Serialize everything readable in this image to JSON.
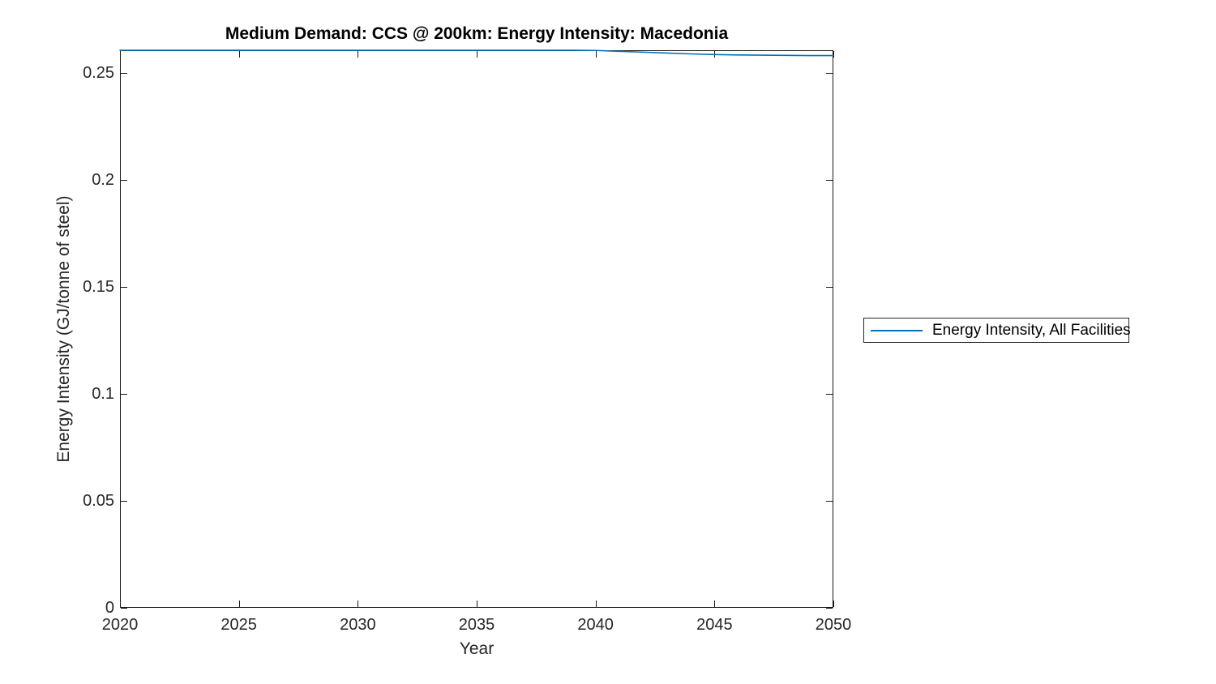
{
  "chart_data": {
    "type": "line",
    "title": "Medium Demand: CCS @ 200km: Energy Intensity: Macedonia",
    "xlabel": "Year",
    "ylabel": "Energy Intensity (GJ/tonne of steel)",
    "xlim": [
      2020,
      2050
    ],
    "ylim": [
      0,
      0.2606
    ],
    "x_ticks": [
      2020,
      2025,
      2030,
      2035,
      2040,
      2045,
      2050
    ],
    "x_tick_labels": [
      "2020",
      "2025",
      "2030",
      "2035",
      "2040",
      "2045",
      "2050"
    ],
    "y_ticks": [
      0,
      0.05,
      0.1,
      0.15,
      0.2,
      0.25
    ],
    "y_tick_labels": [
      "0",
      "0.05",
      "0.1",
      "0.15",
      "0.2",
      "0.25"
    ],
    "grid": false,
    "legend_position": "outside-right",
    "series": [
      {
        "name": "Energy Intensity, All Facilities",
        "color": "#0072BD",
        "x": [
          2020,
          2021,
          2022,
          2023,
          2024,
          2025,
          2026,
          2027,
          2028,
          2029,
          2030,
          2031,
          2032,
          2033,
          2034,
          2035,
          2036,
          2037,
          2038,
          2039,
          2040,
          2041,
          2042,
          2043,
          2044,
          2045,
          2046,
          2047,
          2048,
          2049,
          2050
        ],
        "y": [
          0.2606,
          0.2606,
          0.2606,
          0.2606,
          0.2606,
          0.2606,
          0.2606,
          0.2606,
          0.2606,
          0.2606,
          0.2606,
          0.2606,
          0.2606,
          0.2606,
          0.2606,
          0.2606,
          0.2606,
          0.2606,
          0.2606,
          0.2606,
          0.2605,
          0.2601,
          0.2597,
          0.2593,
          0.2589,
          0.2586,
          0.2584,
          0.2583,
          0.2582,
          0.2581,
          0.2581
        ]
      }
    ]
  },
  "colors": {
    "line": "#0072BD",
    "axis": "#1a1a1a",
    "tick_label": "#262626",
    "title": "#000000",
    "background": "#ffffff"
  }
}
